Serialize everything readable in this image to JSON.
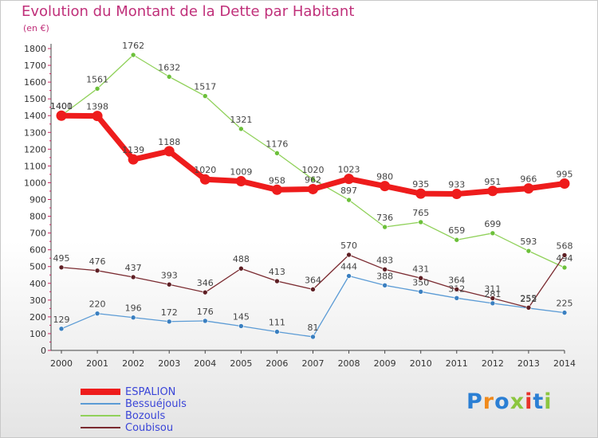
{
  "title": "Evolution du Montant de la Dette par Habitant",
  "subtitle": "(en €)",
  "logo": {
    "text": "Proxiti",
    "colors": [
      "#2b7fd4",
      "#f08a1c",
      "#2b7fd4",
      "#8cc63f",
      "#e8322b",
      "#2b7fd4",
      "#8cc63f"
    ]
  },
  "chart_data": {
    "type": "line",
    "x": [
      "2000",
      "2001",
      "2002",
      "2003",
      "2004",
      "2005",
      "2006",
      "2007",
      "2008",
      "2009",
      "2010",
      "2011",
      "2012",
      "2013",
      "2014"
    ],
    "ylim": [
      0,
      1800
    ],
    "y_ticks": [
      0,
      100,
      200,
      300,
      400,
      500,
      600,
      700,
      800,
      900,
      1000,
      1100,
      1200,
      1300,
      1400,
      1500,
      1600,
      1700,
      1800
    ],
    "grid": false,
    "legend_position": "bottom-left",
    "series": [
      {
        "name": "Bessuéjouls",
        "color": "#5b9bd5",
        "marker": "#3a7fc0",
        "width": 1.3,
        "values": [
          129,
          220,
          196,
          172,
          176,
          145,
          111,
          81,
          444,
          388,
          350,
          312,
          281,
          252,
          225
        ]
      },
      {
        "name": "Bozouls",
        "color": "#90d15a",
        "marker": "#6cc03a",
        "width": 1.3,
        "values": [
          1401,
          1561,
          1762,
          1632,
          1517,
          1321,
          1176,
          1020,
          897,
          736,
          765,
          659,
          699,
          593,
          494
        ]
      },
      {
        "name": "Coubisou",
        "color": "#7a2a30",
        "marker": "#5e1f24",
        "width": 1.3,
        "values": [
          495,
          476,
          437,
          393,
          346,
          488,
          413,
          364,
          570,
          483,
          431,
          364,
          311,
          255,
          568
        ]
      },
      {
        "name": "ESPALION",
        "color": "#ee1c1c",
        "marker": "#ee1c1c",
        "width": 7,
        "values": [
          1400,
          1398,
          1139,
          1188,
          1020,
          1009,
          958,
          962,
          1023,
          980,
          935,
          933,
          951,
          966,
          995
        ]
      }
    ],
    "legend_order": [
      "ESPALION",
      "Bessuéjouls",
      "Bozouls",
      "Coubisou"
    ]
  }
}
